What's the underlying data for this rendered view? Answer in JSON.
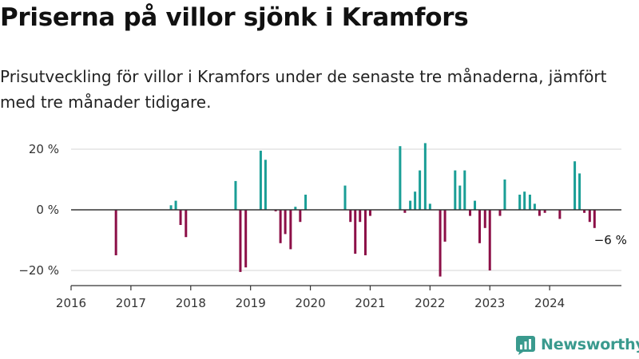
{
  "title": "Priserna på villor sjönk i Kramfors",
  "subtitle": "Prisutveckling för villor i Kramfors under de senaste tre månaderna, jämfört med tre månader tidigare.",
  "brand": "Newsworthy",
  "colors": {
    "positive": "#1a9e96",
    "negative": "#8c0f47",
    "zero_line": "#333333",
    "grid": "#d4d4d4",
    "brand": "#3a9a8e"
  },
  "chart_data": {
    "type": "bar",
    "ylim": [
      -25,
      25
    ],
    "xlim": [
      2016,
      2025.2
    ],
    "y_ticks": [
      {
        "value": 20,
        "label": "20 %"
      },
      {
        "value": 0,
        "label": "0 %"
      },
      {
        "value": -20,
        "label": "−20 %"
      }
    ],
    "x_ticks": [
      {
        "value": 2016,
        "label": "2016"
      },
      {
        "value": 2017,
        "label": "2017"
      },
      {
        "value": 2018,
        "label": "2018"
      },
      {
        "value": 2019,
        "label": "2019"
      },
      {
        "value": 2020,
        "label": "2020"
      },
      {
        "value": 2021,
        "label": "2021"
      },
      {
        "value": 2022,
        "label": "2022"
      },
      {
        "value": 2023,
        "label": "2023"
      },
      {
        "value": 2024,
        "label": "2024"
      }
    ],
    "grid": "horizontal",
    "annotation": {
      "text": "−6 %",
      "x": 2024.75,
      "y": -6
    },
    "points": [
      {
        "x": 2016.75,
        "y": -15
      },
      {
        "x": 2017.67,
        "y": 1.5
      },
      {
        "x": 2017.75,
        "y": 3
      },
      {
        "x": 2017.83,
        "y": -5
      },
      {
        "x": 2017.92,
        "y": -9
      },
      {
        "x": 2018.75,
        "y": 9.5
      },
      {
        "x": 2018.83,
        "y": -20.5
      },
      {
        "x": 2018.92,
        "y": -19
      },
      {
        "x": 2019.17,
        "y": 19.5
      },
      {
        "x": 2019.25,
        "y": 16.5
      },
      {
        "x": 2019.42,
        "y": -0.5
      },
      {
        "x": 2019.5,
        "y": -11
      },
      {
        "x": 2019.58,
        "y": -8
      },
      {
        "x": 2019.67,
        "y": -13
      },
      {
        "x": 2019.75,
        "y": 1
      },
      {
        "x": 2019.83,
        "y": -4
      },
      {
        "x": 2019.92,
        "y": 5
      },
      {
        "x": 2020.58,
        "y": 8
      },
      {
        "x": 2020.67,
        "y": -4
      },
      {
        "x": 2020.75,
        "y": -14.5
      },
      {
        "x": 2020.83,
        "y": -4
      },
      {
        "x": 2020.92,
        "y": -15
      },
      {
        "x": 2021.0,
        "y": -2
      },
      {
        "x": 2021.5,
        "y": 21
      },
      {
        "x": 2021.58,
        "y": -1
      },
      {
        "x": 2021.67,
        "y": 3
      },
      {
        "x": 2021.75,
        "y": 6
      },
      {
        "x": 2021.83,
        "y": 13
      },
      {
        "x": 2021.92,
        "y": 22
      },
      {
        "x": 2022.0,
        "y": 2
      },
      {
        "x": 2022.17,
        "y": -22
      },
      {
        "x": 2022.25,
        "y": -10.5
      },
      {
        "x": 2022.42,
        "y": 13
      },
      {
        "x": 2022.5,
        "y": 8
      },
      {
        "x": 2022.58,
        "y": 13
      },
      {
        "x": 2022.67,
        "y": -2
      },
      {
        "x": 2022.75,
        "y": 3
      },
      {
        "x": 2022.83,
        "y": -11
      },
      {
        "x": 2022.92,
        "y": -6
      },
      {
        "x": 2023.0,
        "y": -20
      },
      {
        "x": 2023.17,
        "y": -2
      },
      {
        "x": 2023.25,
        "y": 10
      },
      {
        "x": 2023.5,
        "y": 5
      },
      {
        "x": 2023.58,
        "y": 6
      },
      {
        "x": 2023.67,
        "y": 5
      },
      {
        "x": 2023.75,
        "y": 2
      },
      {
        "x": 2023.83,
        "y": -2
      },
      {
        "x": 2023.92,
        "y": -1
      },
      {
        "x": 2024.17,
        "y": -3
      },
      {
        "x": 2024.42,
        "y": 16
      },
      {
        "x": 2024.5,
        "y": 12
      },
      {
        "x": 2024.58,
        "y": -1
      },
      {
        "x": 2024.67,
        "y": -4
      },
      {
        "x": 2024.75,
        "y": -6
      }
    ]
  }
}
